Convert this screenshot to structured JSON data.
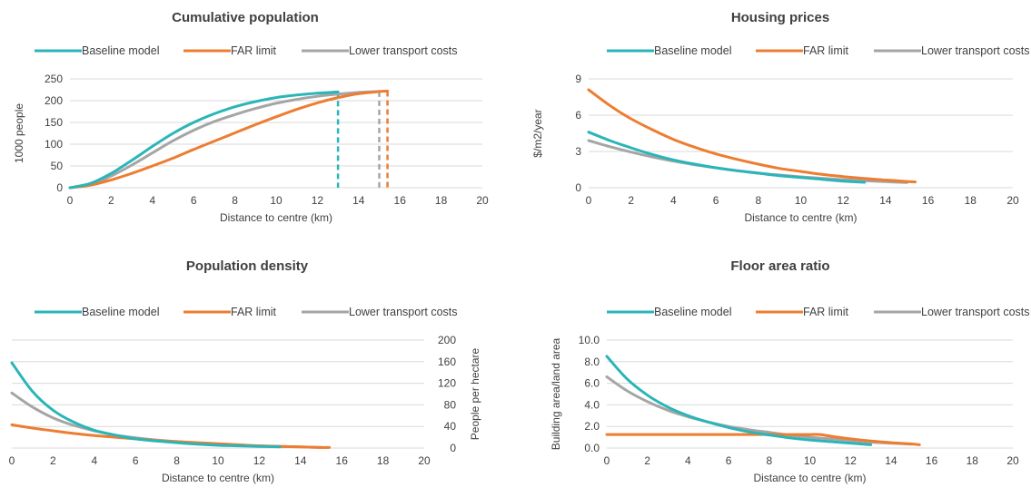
{
  "colors": {
    "baseline": "#2ab5b9",
    "far": "#ed7d31",
    "lower_transport": "#a5a5a5",
    "grid": "#d9d9d9",
    "text": "#404040"
  },
  "legend_labels": [
    "Baseline model",
    "FAR limit",
    "Lower transport costs"
  ],
  "chart_data": [
    {
      "type": "line",
      "title": "Cumulative population",
      "xlabel": "Distance to centre (km)",
      "ylabel": "1000 people",
      "xlim": [
        0,
        20
      ],
      "ylim": [
        0,
        250
      ],
      "xticks": [
        "0",
        "2",
        "4",
        "6",
        "8",
        "10",
        "12",
        "14",
        "16",
        "18",
        "20"
      ],
      "yticks": [
        "0",
        "50",
        "100",
        "150",
        "200",
        "250"
      ],
      "grid": true,
      "legend": "top",
      "series": [
        {
          "name": "Baseline model",
          "x": [
            0,
            1,
            2,
            3,
            4,
            5,
            6,
            7,
            8,
            9,
            10,
            11,
            12,
            13
          ],
          "values": [
            0,
            10,
            33,
            63,
            95,
            125,
            150,
            170,
            186,
            198,
            207,
            213,
            217,
            220
          ]
        },
        {
          "name": "FAR limit",
          "x": [
            0,
            1,
            2,
            3,
            4,
            5,
            6,
            7,
            8,
            9,
            10,
            11,
            12,
            13,
            14,
            15,
            15.4
          ],
          "values": [
            0,
            6,
            18,
            33,
            50,
            68,
            88,
            107,
            126,
            145,
            163,
            180,
            195,
            207,
            216,
            221,
            222
          ]
        },
        {
          "name": "Lower transport costs",
          "x": [
            0,
            1,
            2,
            3,
            4,
            5,
            6,
            7,
            8,
            9,
            10,
            11,
            12,
            13,
            14,
            15
          ],
          "values": [
            0,
            8,
            27,
            52,
            80,
            108,
            132,
            152,
            168,
            182,
            194,
            203,
            210,
            215,
            219,
            221
          ]
        }
      ],
      "cutoffs": [
        {
          "series": "Baseline model",
          "x": 13,
          "value": 220
        },
        {
          "series": "Lower transport costs",
          "x": 15,
          "value": 221
        },
        {
          "series": "FAR limit",
          "x": 15.4,
          "value": 222
        }
      ]
    },
    {
      "type": "line",
      "title": "Housing prices",
      "xlabel": "Distance to centre (km)",
      "ylabel": "$/m2/year",
      "xlim": [
        0,
        20
      ],
      "ylim": [
        0,
        9
      ],
      "xticks": [
        "0",
        "2",
        "4",
        "6",
        "8",
        "10",
        "12",
        "14",
        "16",
        "18",
        "20"
      ],
      "yticks": [
        "0",
        "3",
        "6",
        "9"
      ],
      "grid": true,
      "legend": "top",
      "series": [
        {
          "name": "Baseline model",
          "x": [
            0,
            1,
            2,
            3,
            4,
            5,
            6,
            7,
            8,
            9,
            10,
            11,
            12,
            13
          ],
          "values": [
            4.6,
            3.9,
            3.3,
            2.75,
            2.3,
            1.95,
            1.65,
            1.4,
            1.2,
            1.0,
            0.85,
            0.7,
            0.55,
            0.45
          ]
        },
        {
          "name": "FAR limit",
          "x": [
            0,
            1,
            2,
            3,
            4,
            5,
            6,
            7,
            8,
            9,
            10,
            11,
            12,
            13,
            14,
            15,
            15.4
          ],
          "values": [
            8.1,
            6.8,
            5.7,
            4.8,
            4.0,
            3.35,
            2.8,
            2.35,
            1.95,
            1.6,
            1.35,
            1.1,
            0.92,
            0.77,
            0.64,
            0.52,
            0.48
          ]
        },
        {
          "name": "Lower transport costs",
          "x": [
            0,
            1,
            2,
            3,
            4,
            5,
            6,
            7,
            8,
            9,
            10,
            11,
            12,
            13,
            14,
            15
          ],
          "values": [
            3.9,
            3.4,
            2.95,
            2.55,
            2.2,
            1.9,
            1.65,
            1.42,
            1.22,
            1.05,
            0.9,
            0.78,
            0.67,
            0.58,
            0.5,
            0.43
          ]
        }
      ]
    },
    {
      "type": "line",
      "title": "Population density",
      "xlabel": "Distance to centre (km)",
      "ylabel": "People per hectare",
      "y_axis_side": "right",
      "xlim": [
        0,
        20
      ],
      "ylim": [
        0,
        200
      ],
      "xticks": [
        "0",
        "2",
        "4",
        "6",
        "8",
        "10",
        "12",
        "14",
        "16",
        "18",
        "20"
      ],
      "yticks": [
        "0",
        "40",
        "80",
        "120",
        "160",
        "200"
      ],
      "grid": true,
      "legend": "top",
      "series": [
        {
          "name": "Baseline model",
          "x": [
            0,
            1,
            2,
            3,
            4,
            5,
            6,
            7,
            8,
            9,
            10,
            11,
            12,
            13
          ],
          "values": [
            158,
            105,
            70,
            48,
            33,
            24,
            17,
            13,
            10,
            7,
            5,
            4,
            3,
            2
          ]
        },
        {
          "name": "FAR limit",
          "x": [
            0,
            1,
            2,
            3,
            4,
            5,
            6,
            7,
            8,
            9,
            10,
            11,
            12,
            13,
            14,
            15,
            15.4
          ],
          "values": [
            43,
            37,
            32,
            27,
            23,
            20,
            17,
            14,
            12,
            10,
            8,
            6,
            4,
            3,
            2,
            1,
            1
          ]
        },
        {
          "name": "Lower transport costs",
          "x": [
            0,
            1,
            2,
            3,
            4,
            5,
            6,
            7,
            8,
            9,
            10,
            11,
            12,
            13,
            14,
            15
          ],
          "values": [
            102,
            76,
            56,
            42,
            32,
            24,
            19,
            15,
            12,
            9,
            7,
            5,
            4,
            3,
            2,
            1
          ]
        }
      ]
    },
    {
      "type": "line",
      "title": "Floor area ratio",
      "xlabel": "Distance to centre (km)",
      "ylabel": "Building area/land area",
      "xlim": [
        0,
        20
      ],
      "ylim": [
        0,
        10
      ],
      "xticks": [
        "0",
        "2",
        "4",
        "6",
        "8",
        "10",
        "12",
        "14",
        "16",
        "18",
        "20"
      ],
      "yticks": [
        "0.0",
        "2.0",
        "4.0",
        "6.0",
        "8.0",
        "10.0"
      ],
      "grid": true,
      "legend": "top",
      "series": [
        {
          "name": "Baseline model",
          "x": [
            0,
            1,
            2,
            3,
            4,
            5,
            6,
            7,
            8,
            9,
            10,
            11,
            12,
            13
          ],
          "values": [
            8.5,
            6.4,
            4.9,
            3.8,
            3.0,
            2.4,
            1.9,
            1.5,
            1.2,
            0.95,
            0.75,
            0.6,
            0.45,
            0.3
          ]
        },
        {
          "name": "FAR limit",
          "x": [
            0,
            2,
            4,
            6,
            8,
            9,
            10,
            10.5,
            11,
            12,
            13,
            14,
            15,
            15.4
          ],
          "values": [
            1.25,
            1.25,
            1.25,
            1.25,
            1.25,
            1.25,
            1.25,
            1.25,
            1.1,
            0.85,
            0.65,
            0.5,
            0.38,
            0.3
          ]
        },
        {
          "name": "Lower transport costs",
          "x": [
            0,
            1,
            2,
            3,
            4,
            5,
            6,
            7,
            8,
            9,
            10,
            11,
            12,
            13,
            14,
            15
          ],
          "values": [
            6.6,
            5.3,
            4.3,
            3.5,
            2.9,
            2.4,
            2.0,
            1.7,
            1.45,
            1.2,
            1.0,
            0.85,
            0.7,
            0.55,
            0.45,
            0.35
          ]
        }
      ]
    }
  ]
}
